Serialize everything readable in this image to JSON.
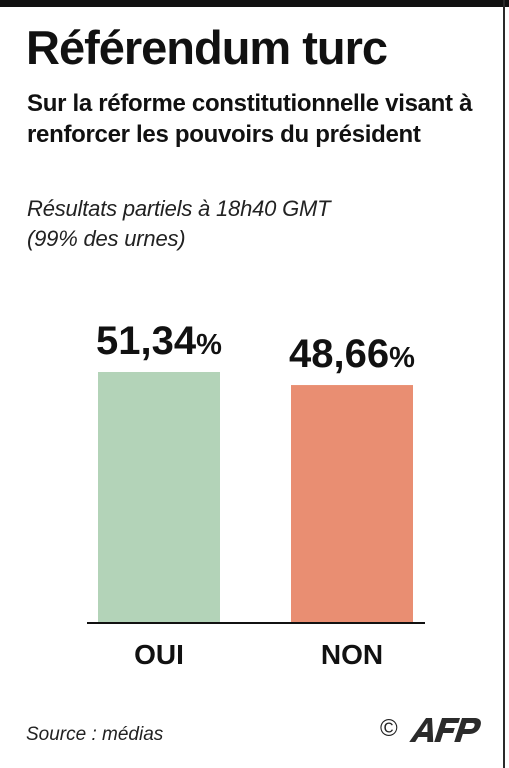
{
  "header": {
    "title": "Référendum turc",
    "subtitle": "Sur la réforme constitutionnelle visant à renforcer les pouvoirs du président",
    "note_line1": "Résultats partiels à 18h40 GMT",
    "note_line2": "(99% des urnes)"
  },
  "chart_data": {
    "type": "bar",
    "categories": [
      "OUI",
      "NON"
    ],
    "values": [
      51.34,
      48.66
    ],
    "value_labels": [
      "51,34",
      "48,66"
    ],
    "value_unit": "%",
    "colors": [
      "#b3d3b8",
      "#e98e72"
    ],
    "title": "",
    "xlabel": "",
    "ylabel": "",
    "ylim": [
      0,
      51.34
    ],
    "grid": false,
    "legend": "none"
  },
  "footer": {
    "source": "Source : médias",
    "copyright_symbol": "©",
    "logo_icon": "afp-logo"
  }
}
